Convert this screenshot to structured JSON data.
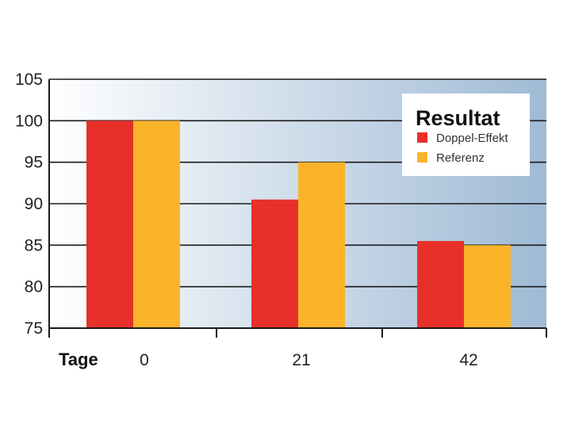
{
  "chart_data": {
    "type": "bar",
    "title": "",
    "xlabel": "Tage",
    "ylabel": "",
    "categories": [
      "0",
      "21",
      "42"
    ],
    "series": [
      {
        "name": "Doppel-Effekt",
        "values": [
          100,
          90.5,
          85.5
        ]
      },
      {
        "name": "Referenz",
        "values": [
          100,
          95,
          85
        ]
      }
    ],
    "ylim": [
      75,
      105
    ],
    "yticks": [
      "75",
      "80",
      "85",
      "90",
      "95",
      "100",
      "105"
    ],
    "grid": true,
    "legend": {
      "title": "Resultat",
      "placement": "top-right"
    },
    "colors": {
      "Doppel-Effekt": "#e8302a",
      "Referenz": "#fbb42a",
      "grid": "#1a1a1a",
      "bg_start": "#ffffff",
      "bg_end": "#9fbad5"
    }
  }
}
